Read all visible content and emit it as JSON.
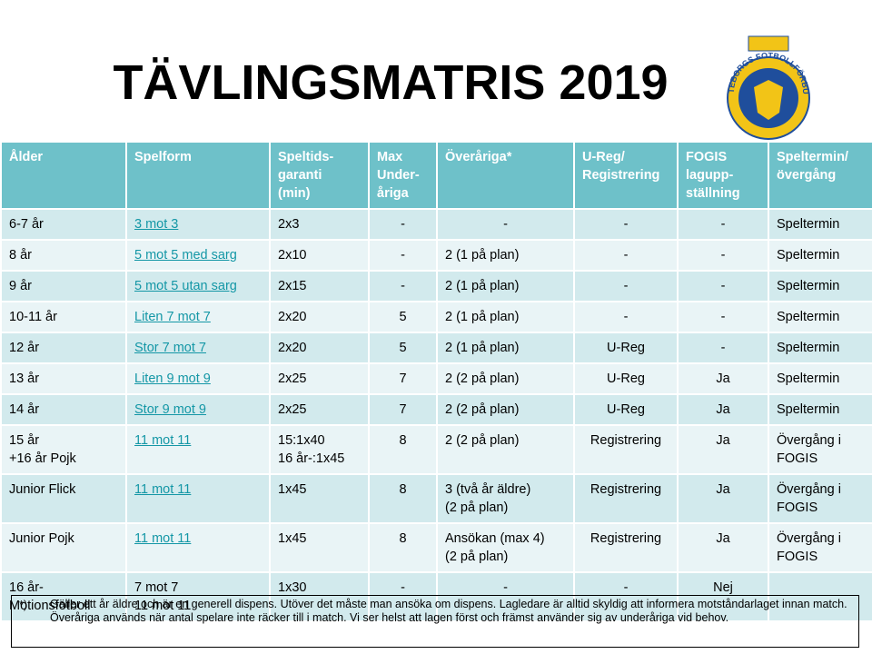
{
  "header": {
    "title": "TÄVLINGSMATRIS 2019",
    "logo_text": "GÖTEBORGS FOTBOLLFÖRBUND"
  },
  "table": {
    "columns": [
      "Ålder",
      "Spelform",
      "Speltids-\ngaranti\n(min)",
      "Max\nUnder-\nåriga",
      "Överåriga*",
      "U-Reg/\nRegistrering",
      "FOGIS\nlagupp-\nställning",
      "Speltermin/\növergång"
    ],
    "rows": [
      [
        "6-7 år",
        "3 mot 3",
        "2x3",
        "-",
        "-",
        "-",
        "-",
        "Speltermin"
      ],
      [
        "8 år",
        "5 mot 5 med sarg",
        "2x10",
        "-",
        "2 (1 på plan)",
        "-",
        "-",
        "Speltermin"
      ],
      [
        "9 år",
        "5 mot 5 utan sarg",
        "2x15",
        "-",
        "2 (1 på plan)",
        "-",
        "-",
        "Speltermin"
      ],
      [
        "10-11 år",
        "Liten 7 mot 7",
        "2x20",
        "5",
        "2 (1 på plan)",
        "-",
        "-",
        "Speltermin"
      ],
      [
        "12 år",
        "Stor 7 mot 7",
        "2x20",
        "5",
        "2 (1 på plan)",
        "U-Reg",
        "-",
        "Speltermin"
      ],
      [
        "13 år",
        "Liten 9 mot 9",
        "2x25",
        "7",
        "2 (2 på plan)",
        "U-Reg",
        "Ja",
        "Speltermin"
      ],
      [
        "14 år",
        "Stor 9 mot 9",
        "2x25",
        "7",
        "2 (2 på plan)",
        "U-Reg",
        "Ja",
        "Speltermin"
      ],
      [
        "15 år\n+16 år Pojk",
        "11 mot 11",
        "15:1x40\n16 år-:1x45",
        "8",
        "2 (2 på plan)",
        "Registrering",
        "Ja",
        "Övergång i\nFOGIS"
      ],
      [
        "Junior Flick",
        "11 mot 11",
        "1x45",
        "8",
        "3 (två år äldre)\n(2 på plan)",
        "Registrering",
        "Ja",
        "Övergång i\nFOGIS"
      ],
      [
        "Junior Pojk",
        "11 mot 11",
        "1x45",
        "8",
        "Ansökan (max 4)\n(2 på plan)",
        "Registrering",
        "Ja",
        "Övergång i\nFOGIS"
      ],
      [
        "16 år-\nMotionsfotboll",
        "7 mot 7\n11 mot 11",
        "1x30",
        "-",
        "-",
        "-",
        "Nej",
        ""
      ]
    ]
  },
  "footnote": {
    "marker": "*)",
    "lines": [
      "Gäller ett år äldre och är en generell dispens. Utöver det måste man ansöka om dispens. Lagledare är alltid skyldig att informera motståndarlaget innan match.",
      "Överåriga används när antal spelare inte räcker till i match. Vi ser helst att lagen först och främst använder sig av underåriga vid behov."
    ]
  }
}
